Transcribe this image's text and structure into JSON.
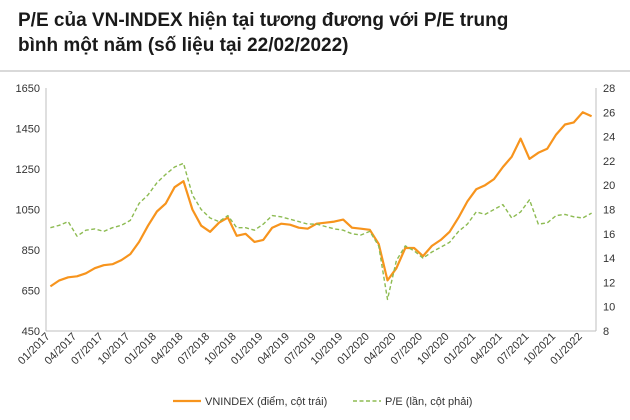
{
  "title": {
    "line1": "P/E của VN-INDEX hiện tại tương đương với P/E trung",
    "line2": "bình một năm (số liệu tại 22/02/2022)"
  },
  "colors": {
    "vnindex": "#f7941d",
    "pe": "#8dbb52",
    "axis": "#bfbfbf",
    "text": "#333333"
  },
  "chart_data": {
    "type": "line",
    "x_tick_labels": [
      "01/2017",
      "04/2017",
      "07/2017",
      "10/2017",
      "01/2018",
      "04/2018",
      "07/2018",
      "10/2018",
      "01/2019",
      "04/2019",
      "07/2019",
      "10/2019",
      "01/2020",
      "04/2020",
      "07/2020",
      "10/2020",
      "01/2021",
      "04/2021",
      "07/2021",
      "10/2021",
      "01/2022"
    ],
    "x": [
      "01/2017",
      "02/2017",
      "03/2017",
      "04/2017",
      "05/2017",
      "06/2017",
      "07/2017",
      "08/2017",
      "09/2017",
      "10/2017",
      "11/2017",
      "12/2017",
      "01/2018",
      "02/2018",
      "03/2018",
      "04/2018",
      "05/2018",
      "06/2018",
      "07/2018",
      "08/2018",
      "09/2018",
      "10/2018",
      "11/2018",
      "12/2018",
      "01/2019",
      "02/2019",
      "03/2019",
      "04/2019",
      "05/2019",
      "06/2019",
      "07/2019",
      "08/2019",
      "09/2019",
      "10/2019",
      "11/2019",
      "12/2019",
      "01/2020",
      "02/2020",
      "03/2020",
      "04/2020",
      "05/2020",
      "06/2020",
      "07/2020",
      "08/2020",
      "09/2020",
      "10/2020",
      "11/2020",
      "12/2020",
      "01/2021",
      "02/2021",
      "03/2021",
      "04/2021",
      "05/2021",
      "06/2021",
      "07/2021",
      "08/2021",
      "09/2021",
      "10/2021",
      "11/2021",
      "12/2021",
      "01/2022",
      "02/2022"
    ],
    "y_left": {
      "min": 450,
      "max": 1650,
      "ticks": [
        450,
        650,
        850,
        1050,
        1250,
        1450,
        1650
      ]
    },
    "y_right": {
      "min": 8,
      "max": 28,
      "ticks": [
        8,
        10,
        12,
        14,
        16,
        18,
        20,
        22,
        24,
        26,
        28
      ]
    },
    "series": [
      {
        "name": "VNINDEX (điểm, cột trái)",
        "axis": "left",
        "style": "solid",
        "values": [
          670,
          700,
          715,
          720,
          735,
          760,
          775,
          780,
          800,
          830,
          890,
          970,
          1040,
          1080,
          1160,
          1190,
          1050,
          970,
          940,
          985,
          1010,
          920,
          930,
          890,
          900,
          960,
          980,
          975,
          960,
          955,
          980,
          985,
          990,
          1000,
          960,
          955,
          950,
          880,
          700,
          760,
          860,
          860,
          820,
          870,
          900,
          940,
          1010,
          1090,
          1150,
          1170,
          1200,
          1260,
          1310,
          1400,
          1300,
          1330,
          1350,
          1420,
          1470,
          1480,
          1530,
          1510
        ]
      },
      {
        "name": "P/E (lần, cột phải)",
        "axis": "right",
        "style": "dashed",
        "values": [
          16.5,
          16.7,
          17.0,
          15.8,
          16.3,
          16.4,
          16.2,
          16.5,
          16.7,
          17.1,
          18.5,
          19.2,
          20.2,
          20.9,
          21.5,
          21.8,
          19.2,
          18.0,
          17.3,
          17.0,
          17.5,
          16.5,
          16.5,
          16.3,
          16.8,
          17.5,
          17.4,
          17.2,
          17.0,
          16.8,
          16.8,
          16.6,
          16.4,
          16.3,
          16.0,
          15.9,
          16.2,
          15.0,
          10.6,
          13.8,
          15.0,
          14.6,
          14.0,
          14.5,
          14.9,
          15.3,
          16.2,
          16.8,
          17.8,
          17.6,
          18.0,
          18.4,
          17.3,
          17.8,
          18.8,
          16.8,
          16.9,
          17.5,
          17.6,
          17.4,
          17.3,
          17.7
        ]
      }
    ],
    "legend": [
      "VNINDEX (điểm, cột trái)",
      "P/E (lần, cột phải)"
    ],
    "legend_position": "bottom"
  }
}
